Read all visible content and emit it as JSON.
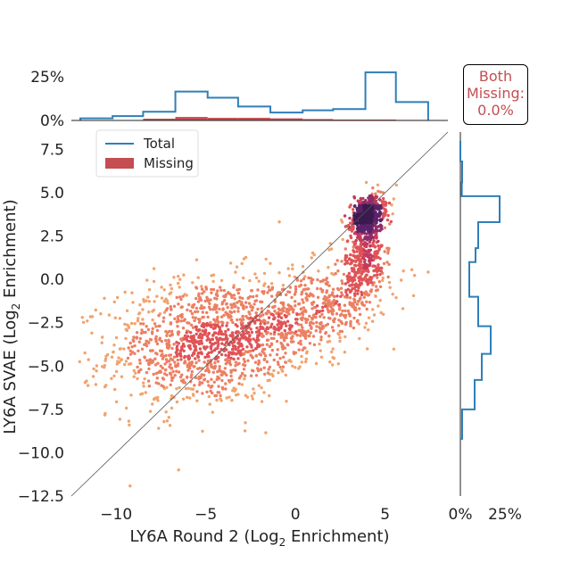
{
  "chart_data": {
    "type": "scatter",
    "xlabel_main": "LY6A Round 2 (Log",
    "xlabel_sub": "2",
    "xlabel_end": " Enrichment)",
    "ylabel_main": "LY6A SVAE (Log",
    "ylabel_sub": "2",
    "ylabel_end": " Enrichment)",
    "xlim": [
      -12.5,
      8.5
    ],
    "ylim": [
      -12.5,
      8.5
    ],
    "xticks": [
      -10,
      -5,
      0,
      5
    ],
    "xtick_labels": [
      "−10",
      "−5",
      "0",
      "5"
    ],
    "yticks": [
      7.5,
      5.0,
      2.5,
      0.0,
      -2.5,
      -5.0,
      -7.5,
      -10.0,
      -12.5
    ],
    "ytick_labels": [
      "7.5",
      "5.0",
      "2.5",
      "0.0",
      "−2.5",
      "−5.0",
      "−7.5",
      "−10.0",
      "−12.5"
    ],
    "diagonal": true,
    "clusters": [
      {
        "cx": -5.2,
        "cy": -3.6,
        "sx": 2.6,
        "sy": 1.9,
        "n": 1100,
        "rho": 0.15
      },
      {
        "cx": 0.5,
        "cy": -2.0,
        "sx": 2.4,
        "sy": 1.6,
        "n": 650,
        "rho": 0.55
      },
      {
        "cx": 3.9,
        "cy": 1.5,
        "sx": 0.55,
        "sy": 1.5,
        "n": 420,
        "rho": 0.35
      },
      {
        "cx": 4.0,
        "cy": 3.7,
        "sx": 0.45,
        "sy": 0.55,
        "n": 500,
        "rho": 0.3
      }
    ],
    "colormap": [
      "#f0a46f",
      "#ec8063",
      "#e05356",
      "#c43a5c",
      "#8f2d68",
      "#5b2369",
      "#3b1a4f"
    ],
    "top_histogram": {
      "bin_edges": [
        -12,
        -10.2,
        -8.5,
        -6.7,
        -4.9,
        -3.2,
        -1.4,
        0.4,
        2.1,
        3.9,
        5.6,
        7.4
      ],
      "total_pct": [
        1.2,
        2.5,
        5.0,
        16.5,
        13.0,
        8.0,
        4.5,
        5.8,
        6.5,
        27.5,
        10.5
      ],
      "missing_pct": [
        0,
        0,
        1.0,
        2.0,
        1.5,
        1.5,
        1.2,
        0.8,
        0.5,
        0.5,
        0.3
      ],
      "yticks": [
        0,
        25
      ],
      "ytick_labels": [
        "0%",
        "25%"
      ]
    },
    "right_histogram": {
      "bin_edges": [
        8.0,
        6.8,
        5.6,
        4.8,
        3.3,
        1.8,
        1.0,
        -1.0,
        -2.7,
        -4.3,
        -5.8,
        -7.5,
        -9.2
      ],
      "total_pct": [
        0,
        1.0,
        0.8,
        22.0,
        10.0,
        8.5,
        5.0,
        10.0,
        17.0,
        12.0,
        8.0,
        1.0
      ],
      "xticks": [
        0,
        25
      ],
      "xtick_labels": [
        "0%",
        "25%"
      ]
    },
    "legend": [
      {
        "label": "Total",
        "kind": "line",
        "color": "#2f7fb8"
      },
      {
        "label": "Missing",
        "kind": "patch",
        "color": "#c44e52"
      }
    ],
    "legend_position": "upper-left"
  },
  "badge": {
    "line1": "Both",
    "line2": "Missing:",
    "line3": "0.0%"
  }
}
